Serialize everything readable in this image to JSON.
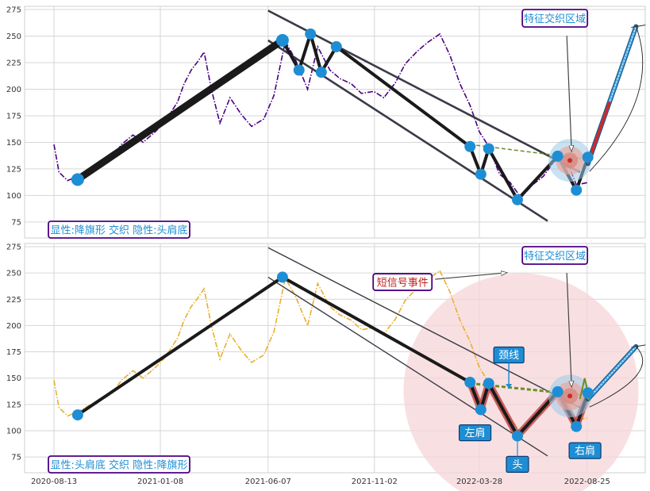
{
  "chart_data": [
    {
      "type": "line",
      "panel": "top",
      "ylim": [
        60,
        278
      ],
      "y_ticks": [
        "75",
        "100",
        "125",
        "150",
        "175",
        "200",
        "225",
        "250",
        "275"
      ],
      "x_tick_labels": [
        "2020-08-13",
        "2021-01-08",
        "2021-06-07",
        "2021-11-02",
        "2022-03-28",
        "2022-08-25"
      ],
      "x_range": [
        "2020-08-13",
        "2022-11-20"
      ],
      "grid": true,
      "series": [
        {
          "color": "#4b0082",
          "style": "dash-dot",
          "x": [
            "2020-08-13",
            "2020-08-20",
            "2020-09-01",
            "2020-09-15",
            "2020-10-01",
            "2020-10-15",
            "2020-11-01",
            "2020-11-15",
            "2020-12-01",
            "2020-12-15",
            "2021-01-01",
            "2021-01-15",
            "2021-02-01",
            "2021-02-10",
            "2021-02-20",
            "2021-03-01",
            "2021-03-10",
            "2021-03-20",
            "2021-04-01",
            "2021-04-15",
            "2021-05-01",
            "2021-05-15",
            "2021-06-01",
            "2021-06-15",
            "2021-07-01",
            "2021-07-15",
            "2021-08-01",
            "2021-08-15",
            "2021-09-01",
            "2021-09-15",
            "2021-10-01",
            "2021-10-15",
            "2021-11-01",
            "2021-11-15",
            "2021-12-01",
            "2021-12-15",
            "2022-01-01",
            "2022-01-15",
            "2022-02-01",
            "2022-02-15",
            "2022-03-01",
            "2022-03-15",
            "2022-03-28",
            "2022-04-10",
            "2022-04-25",
            "2022-05-10",
            "2022-05-25",
            "2022-06-10",
            "2022-06-25",
            "2022-07-10",
            "2022-07-25",
            "2022-08-10",
            "2022-08-25"
          ],
          "y": [
            148,
            122,
            114,
            118,
            124,
            128,
            135,
            148,
            157,
            150,
            160,
            170,
            188,
            205,
            218,
            226,
            235,
            200,
            168,
            192,
            176,
            165,
            172,
            194,
            245,
            228,
            200,
            240,
            218,
            210,
            205,
            196,
            198,
            192,
            206,
            224,
            236,
            244,
            252,
            232,
            205,
            185,
            160,
            146,
            120,
            112,
            98,
            110,
            118,
            132,
            137,
            110,
            112
          ]
        }
      ],
      "pattern_points": [
        {
          "x": "2020-09-15",
          "y": 115
        },
        {
          "x": "2021-06-27",
          "y": 246
        },
        {
          "x": "2021-07-20",
          "y": 218
        },
        {
          "x": "2021-08-05",
          "y": 252
        },
        {
          "x": "2021-08-20",
          "y": 216
        },
        {
          "x": "2021-09-10",
          "y": 240
        },
        {
          "x": "2022-03-15",
          "y": 146
        },
        {
          "x": "2022-03-30",
          "y": 120
        },
        {
          "x": "2022-04-10",
          "y": 144
        },
        {
          "x": "2022-05-20",
          "y": 96
        },
        {
          "x": "2022-07-15",
          "y": 137
        },
        {
          "x": "2022-08-10",
          "y": 105
        },
        {
          "x": "2022-08-26",
          "y": 136
        }
      ],
      "channel_upper": [
        {
          "x": "2021-06-07",
          "y": 274
        },
        {
          "x": "2022-08-15",
          "y": 122
        }
      ],
      "channel_lower": [
        {
          "x": "2021-06-07",
          "y": 246
        },
        {
          "x": "2022-07-01",
          "y": 76
        }
      ],
      "neckline": [
        {
          "x": "2022-03-15",
          "y": 148
        },
        {
          "x": "2022-08-26",
          "y": 134
        }
      ],
      "target_line": {
        "start": {
          "x": "2022-08-26",
          "y": 130
        },
        "end": {
          "x": "2022-11-01",
          "y": 259
        }
      },
      "focus_point": {
        "x": "2022-08-01",
        "y": 133
      },
      "annotation_feature": "特征交织区域",
      "label": "显性:降旗形 交织 隐性:头肩底"
    },
    {
      "type": "line",
      "panel": "bottom",
      "ylim": [
        60,
        278
      ],
      "y_ticks": [
        "75",
        "100",
        "125",
        "150",
        "175",
        "200",
        "225",
        "250",
        "275"
      ],
      "x_tick_labels": [
        "2020-08-13",
        "2021-01-08",
        "2021-06-07",
        "2021-11-02",
        "2022-03-28",
        "2022-08-25"
      ],
      "x_range": [
        "2020-08-13",
        "2022-11-20"
      ],
      "grid": true,
      "series": [
        {
          "color": "#e8b030",
          "style": "dash-dot",
          "x": [
            "2020-08-13",
            "2020-08-20",
            "2020-09-01",
            "2020-09-15",
            "2020-10-01",
            "2020-10-15",
            "2020-11-01",
            "2020-11-15",
            "2020-12-01",
            "2020-12-15",
            "2021-01-01",
            "2021-01-15",
            "2021-02-01",
            "2021-02-10",
            "2021-02-20",
            "2021-03-01",
            "2021-03-10",
            "2021-03-20",
            "2021-04-01",
            "2021-04-15",
            "2021-05-01",
            "2021-05-15",
            "2021-06-01",
            "2021-06-15",
            "2021-07-01",
            "2021-07-15",
            "2021-08-01",
            "2021-08-15",
            "2021-09-01",
            "2021-09-15",
            "2021-10-01",
            "2021-10-15",
            "2021-11-01",
            "2021-11-15",
            "2021-12-01",
            "2021-12-15",
            "2022-01-01",
            "2022-01-15",
            "2022-02-01",
            "2022-02-15",
            "2022-03-01",
            "2022-03-15",
            "2022-03-28",
            "2022-04-10",
            "2022-04-25",
            "2022-05-10",
            "2022-05-25",
            "2022-06-10",
            "2022-06-25",
            "2022-07-10",
            "2022-07-25",
            "2022-08-10",
            "2022-08-25"
          ],
          "y": [
            148,
            122,
            114,
            118,
            124,
            128,
            135,
            148,
            157,
            150,
            160,
            170,
            188,
            205,
            218,
            226,
            235,
            200,
            168,
            192,
            176,
            165,
            172,
            194,
            245,
            228,
            200,
            240,
            218,
            210,
            205,
            196,
            198,
            192,
            206,
            224,
            236,
            244,
            252,
            232,
            205,
            185,
            160,
            146,
            120,
            112,
            98,
            110,
            118,
            132,
            137,
            110,
            112
          ]
        }
      ],
      "pattern_points": [
        {
          "x": "2020-09-15",
          "y": 115
        },
        {
          "x": "2021-06-27",
          "y": 246
        },
        {
          "x": "2022-03-15",
          "y": 146
        },
        {
          "x": "2022-03-30",
          "y": 120
        },
        {
          "x": "2022-04-10",
          "y": 145
        },
        {
          "x": "2022-05-20",
          "y": 95
        },
        {
          "x": "2022-07-15",
          "y": 137
        },
        {
          "x": "2022-08-10",
          "y": 104
        },
        {
          "x": "2022-08-26",
          "y": 136
        }
      ],
      "channel_upper": [
        {
          "x": "2021-06-07",
          "y": 274
        },
        {
          "x": "2022-08-15",
          "y": 122
        }
      ],
      "channel_lower": [
        {
          "x": "2021-06-07",
          "y": 246
        },
        {
          "x": "2022-07-01",
          "y": 76
        }
      ],
      "neckline": [
        {
          "x": "2022-03-15",
          "y": 145
        },
        {
          "x": "2022-09-01",
          "y": 133
        }
      ],
      "target_line": {
        "start": {
          "x": "2022-08-26",
          "y": 130
        },
        "end": {
          "x": "2022-11-01",
          "y": 180
        }
      },
      "focus_point": {
        "x": "2022-08-01",
        "y": 133
      },
      "annotation_feature": "特征交织区域",
      "annotation_event": "短信号事件",
      "annotation_neck": "颈线",
      "annotation_left_shoulder": "左肩",
      "annotation_head": "头",
      "annotation_right_shoulder": "右肩",
      "label": "显性:头肩底 交织 隐性:降旗形"
    }
  ],
  "colors": {
    "frame": "#cfcfcf",
    "grid": "#d6d6d6",
    "pattern_line": "#1a1a1a",
    "channel": "#3a3a48",
    "marker": "#1e8ed4",
    "neckline": "#6b8e23",
    "highlight_red": "#d02828",
    "label_border": "#4b0082",
    "label_text": "#1e8ed4",
    "feature_text": "#1e8ed4",
    "event_text": "#c02020",
    "box_fill": "#1e8ed4",
    "target_fill": "#4aa8e0",
    "circle_fill": "#f6d5d8"
  }
}
